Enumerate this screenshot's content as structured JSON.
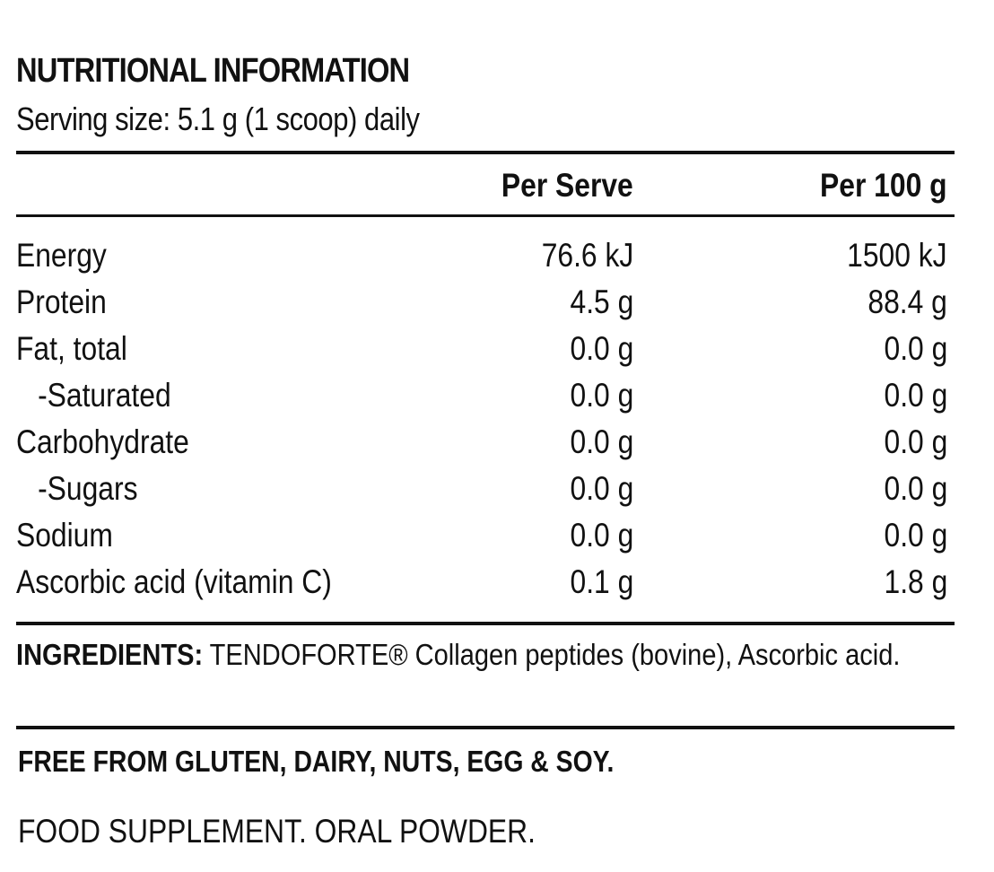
{
  "title": "NUTRITIONAL INFORMATION",
  "serving": "Serving size: 5.1 g (1 scoop) daily",
  "table": {
    "headers": {
      "label": "",
      "per_serve": "Per Serve",
      "per_100g": "Per 100 g"
    },
    "rows": [
      {
        "label": "Energy",
        "per_serve": "76.6 kJ",
        "per_100g": "1500 kJ"
      },
      {
        "label": "Protein",
        "per_serve": "4.5 g",
        "per_100g": "88.4 g"
      },
      {
        "label": "Fat, total",
        "per_serve": "0.0 g",
        "per_100g": "0.0 g"
      },
      {
        "label": "-Saturated",
        "per_serve": "0.0 g",
        "per_100g": "0.0 g"
      },
      {
        "label": "Carbohydrate",
        "per_serve": "0.0 g",
        "per_100g": "0.0 g"
      },
      {
        "label": "-Sugars",
        "per_serve": "0.0 g",
        "per_100g": "0.0 g"
      },
      {
        "label": "Sodium",
        "per_serve": "0.0 g",
        "per_100g": "0.0 g"
      },
      {
        "label": "Ascorbic acid (vitamin C)",
        "per_serve": "0.1 g",
        "per_100g": "1.8 g"
      }
    ]
  },
  "ingredients": {
    "label": "INGREDIENTS:",
    "text": "TENDOFORTE® Collagen peptides (bovine), Ascorbic acid."
  },
  "allergen": "FREE FROM GLUTEN, DAIRY, NUTS, EGG & SOY.",
  "product_type": "FOOD SUPPLEMENT. ORAL POWDER."
}
